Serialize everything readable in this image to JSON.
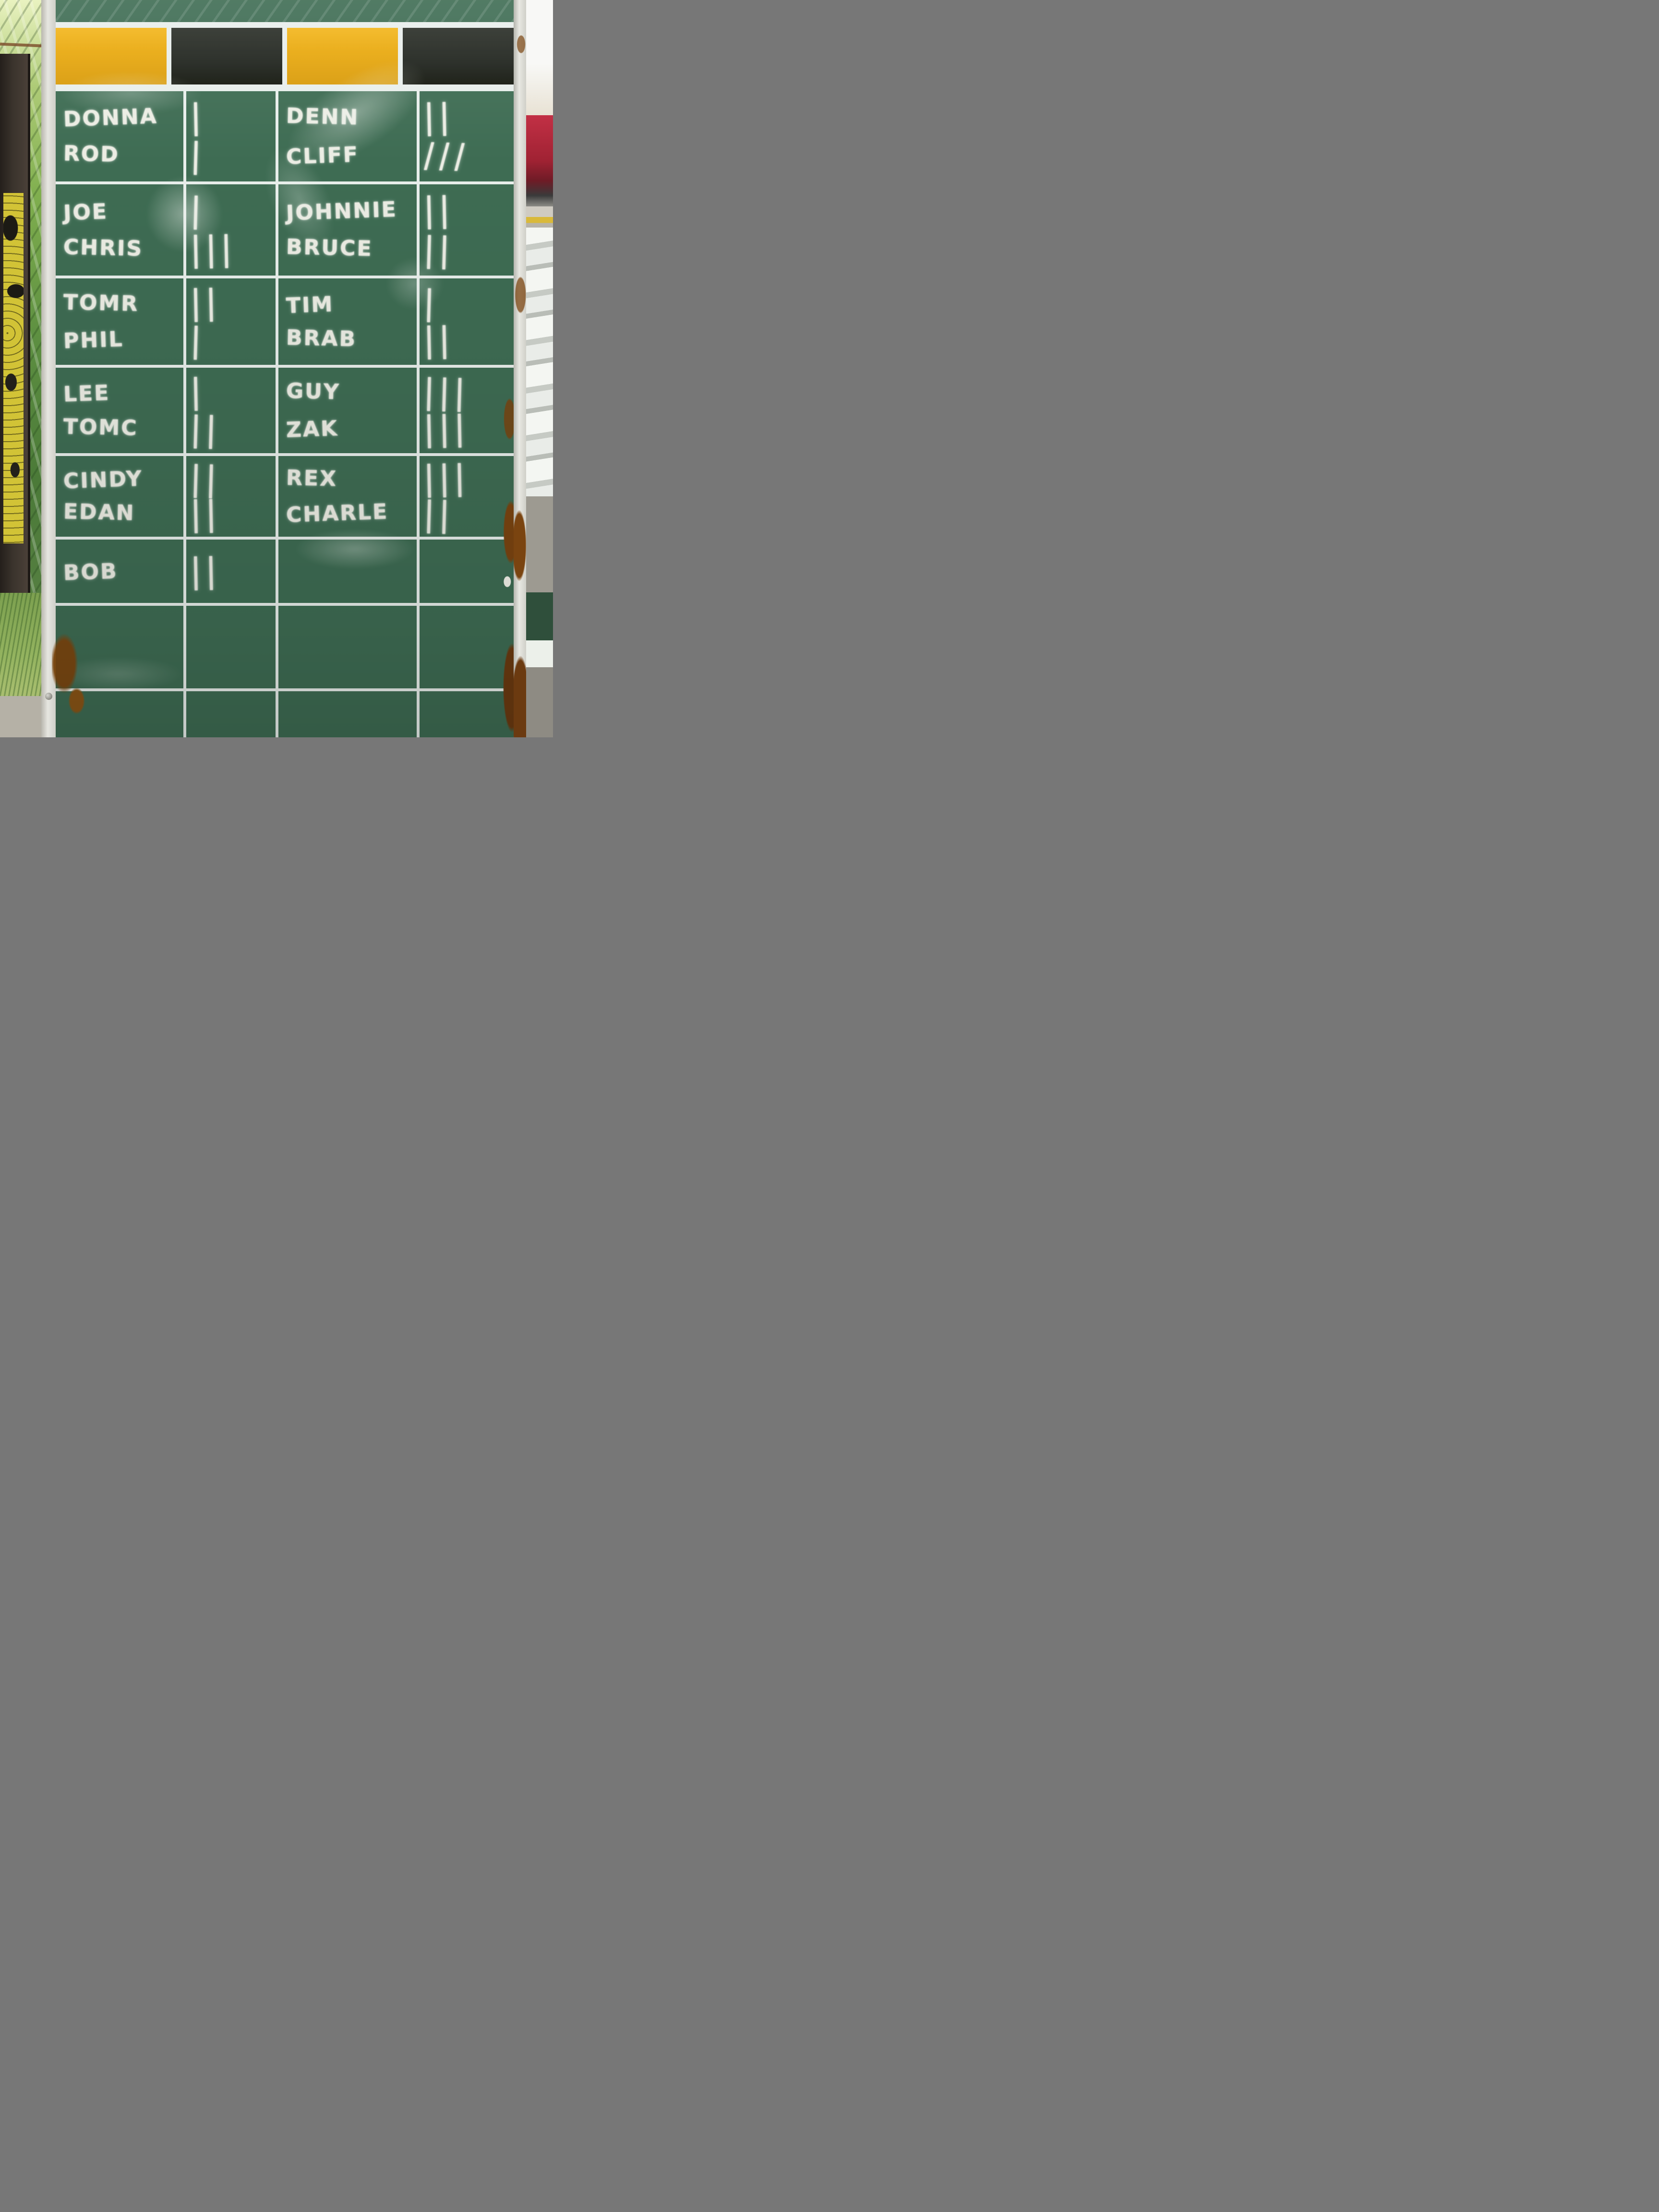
{
  "board": {
    "header": {
      "cells": [
        "gold",
        "black",
        "gold",
        "black"
      ]
    },
    "rows": [
      {
        "left": [
          {
            "name": "DONNA",
            "tally": "|",
            "count": 1
          },
          {
            "name": "ROD",
            "tally": "|",
            "count": 1
          }
        ],
        "right": [
          {
            "name": "DENN",
            "tally": "||",
            "count": 2
          },
          {
            "name": "CLIFF",
            "tally": "///",
            "count": 3
          }
        ]
      },
      {
        "left": [
          {
            "name": "JOE",
            "tally": "|",
            "count": 1
          },
          {
            "name": "CHRIS",
            "tally": "|||",
            "count": 3
          }
        ],
        "right": [
          {
            "name": "JOHNNIE",
            "tally": "||",
            "count": 2
          },
          {
            "name": "BRUCE",
            "tally": "||",
            "count": 2
          }
        ]
      },
      {
        "left": [
          {
            "name": "TOMR",
            "tally": "||",
            "count": 2
          },
          {
            "name": "PHIL",
            "tally": "|",
            "count": 1
          }
        ],
        "right": [
          {
            "name": "TIM",
            "tally": "|",
            "count": 1
          },
          {
            "name": "BRAB",
            "tally": "||",
            "count": 2
          }
        ]
      },
      {
        "left": [
          {
            "name": "LEE",
            "tally": "|",
            "count": 1
          },
          {
            "name": "TOMC",
            "tally": "||",
            "count": 2
          }
        ],
        "right": [
          {
            "name": "GUY",
            "tally": "|||",
            "count": 3
          },
          {
            "name": "ZAK",
            "tally": "|||",
            "count": 3
          }
        ]
      },
      {
        "left": [
          {
            "name": "CINDY",
            "tally": "||",
            "count": 2
          },
          {
            "name": "EDAN",
            "tally": "||",
            "count": 2
          }
        ],
        "right": [
          {
            "name": "REX",
            "tally": "|||",
            "count": 3
          },
          {
            "name": "CHARLE",
            "tally": "||",
            "count": 2
          }
        ]
      },
      {
        "left": [
          {
            "name": "BOB",
            "tally": "||",
            "count": 2
          }
        ],
        "right": []
      }
    ]
  },
  "colors": {
    "board_green": "#3E6C53",
    "grid_line": "#E8EEEB",
    "header_gold": "#E9A90E",
    "header_black": "#20241E",
    "chalk": "#ECEDE4",
    "frame": "#DCDCD4",
    "rust": "#7A4410"
  }
}
